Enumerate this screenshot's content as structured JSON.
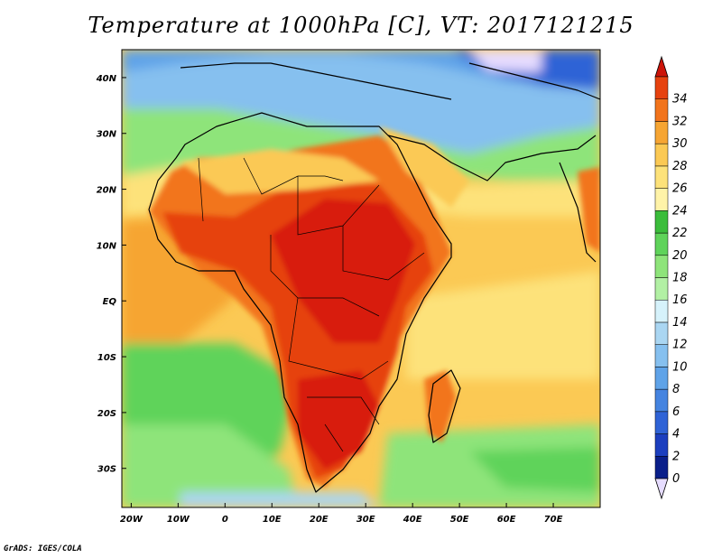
{
  "title": "Temperature at 1000hPa [C], VT: 2017121215",
  "footer": "GrADS: IGES/COLA",
  "map": {
    "lat_labels": [
      "40N",
      "30N",
      "20N",
      "10N",
      "EQ",
      "10S",
      "20S",
      "30S"
    ],
    "lat_values": [
      40,
      30,
      20,
      10,
      0,
      -10,
      -20,
      -30
    ],
    "lon_labels": [
      "20W",
      "10W",
      "0",
      "10E",
      "20E",
      "30E",
      "40E",
      "50E",
      "60E",
      "70E"
    ],
    "lon_values": [
      -20,
      -10,
      0,
      10,
      20,
      30,
      40,
      50,
      60,
      70
    ],
    "lon_range": [
      -22,
      80
    ],
    "lat_range": [
      -37,
      45
    ]
  },
  "colorbar": {
    "levels": [
      "0",
      "2",
      "4",
      "6",
      "8",
      "10",
      "12",
      "14",
      "16",
      "18",
      "20",
      "22",
      "24",
      "26",
      "28",
      "30",
      "32",
      "34"
    ],
    "colors": [
      "#0a1f8a",
      "#1c3fbf",
      "#2f63d6",
      "#4584e0",
      "#5fa3e8",
      "#86c0ef",
      "#aad6f2",
      "#d6f2fb",
      "#b2f0a4",
      "#8ee47a",
      "#5fd35a",
      "#3bbd3b",
      "#fff3a8",
      "#fde27a",
      "#fbc954",
      "#f6a533",
      "#f2741c",
      "#e6420f",
      "#d81b0c"
    ],
    "min_color": "#e6dcff",
    "max_color": "#cc1409"
  },
  "colors": {
    "ocean_mid": "#fbc954",
    "ocean_light": "#fde27a",
    "ocean_tropic": "#f6a533",
    "south_green": "#5fd35a",
    "north_blue": "#86c0ef",
    "land_hot": "#e6420f",
    "land_very_hot": "#d81b0c",
    "sahara_warm": "#f6a533",
    "north_green": "#8ee47a"
  }
}
